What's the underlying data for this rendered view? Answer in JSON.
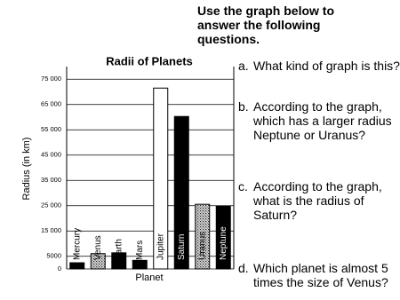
{
  "instructions": "Use the graph below  to answer the following questions.",
  "questions": [
    {
      "letter": "a.",
      "text": "What kind of graph is this?"
    },
    {
      "letter": "b.",
      "text": "According to the graph, which has a larger radius Neptune or Uranus?"
    },
    {
      "letter": "c.",
      "text": "According to the graph, what is the radius of Saturn?"
    },
    {
      "letter": "d.",
      "text": "Which planet is almost 5 times the size of Venus?"
    }
  ],
  "chart_data": {
    "type": "bar",
    "title": "Radii of Planets",
    "x_label": "Planet",
    "y_label": "Radius (in km)",
    "categories": [
      "Mercury",
      "Venus",
      "Earth",
      "Mars",
      "Jupiter",
      "Saturn",
      "Uranus",
      "Neptune"
    ],
    "values": [
      2440,
      6052,
      6371,
      3390,
      71492,
      60268,
      25559,
      24764
    ],
    "patterns": [
      "solid",
      "dotted",
      "solid",
      "solid",
      "white",
      "solid",
      "dotted",
      "solid"
    ],
    "ylim": [
      0,
      80000
    ],
    "yticks": [
      0,
      {
        "value": 5000,
        "label": "5000"
      },
      {
        "value": 15000,
        "label": "15 000"
      },
      {
        "value": 25000,
        "label": "25 000"
      },
      {
        "value": 35000,
        "label": "35 000"
      },
      {
        "value": 45000,
        "label": "45 000"
      },
      {
        "value": 55000,
        "label": "55 000"
      },
      {
        "value": 65000,
        "label": "65 000"
      },
      {
        "value": 75000,
        "label": "75 000"
      }
    ],
    "grid": true
  }
}
